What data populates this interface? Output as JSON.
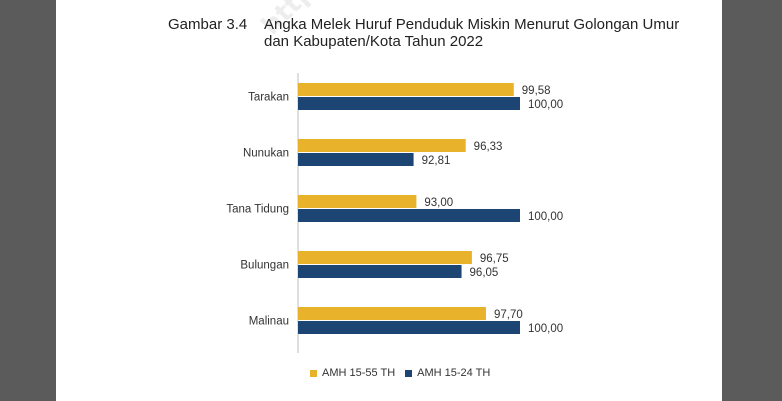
{
  "figure": {
    "number": "Gambar 3.4",
    "title": "Angka Melek Huruf Penduduk Miskin Menurut Golongan Umur dan Kabupaten/Kota Tahun 2022"
  },
  "watermark": "https://",
  "colors": {
    "series1": "#E8B32A",
    "series2": "#1C4573",
    "axis": "#bfbfbf",
    "text": "#333333"
  },
  "chart_data": {
    "type": "bar",
    "orientation": "horizontal",
    "categories": [
      "Tarakan",
      "Nunukan",
      "Tana Tidung",
      "Bulungan",
      "Malinau"
    ],
    "series": [
      {
        "name": "AMH 15-55 TH",
        "values": [
          99.58,
          96.33,
          93.0,
          96.75,
          97.7
        ],
        "labels": [
          "99,58",
          "96,33",
          "93,00",
          "96,75",
          "97,70"
        ]
      },
      {
        "name": "AMH 15-24 TH",
        "values": [
          100.0,
          92.81,
          100.0,
          96.05,
          100.0
        ],
        "labels": [
          "100,00",
          "92,81",
          "100,00",
          "96,05",
          "100,00"
        ]
      }
    ],
    "xlim": [
      85,
      100
    ],
    "legend_position": "bottom",
    "grid": false
  }
}
